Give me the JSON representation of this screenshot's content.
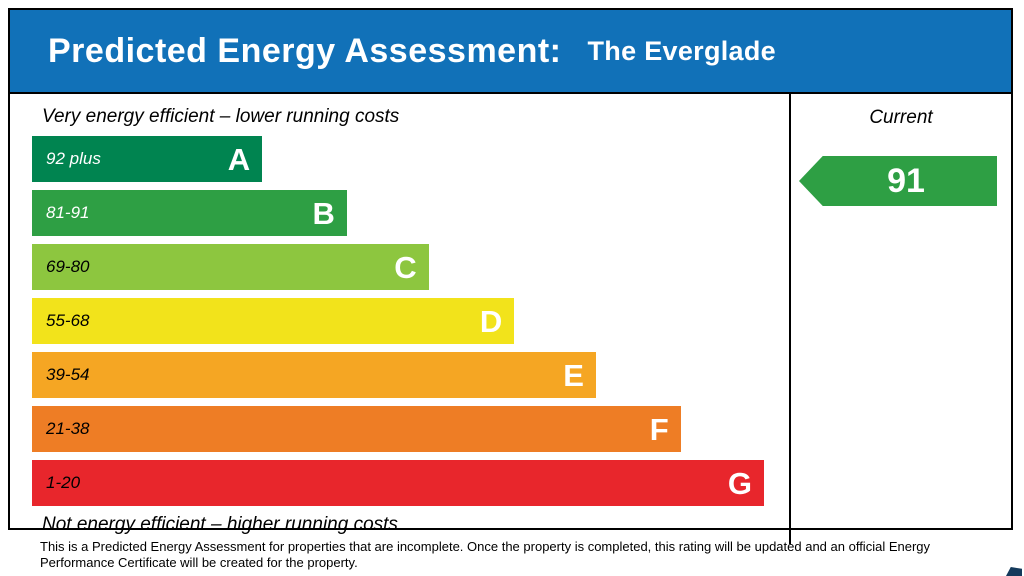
{
  "header": {
    "title": "Predicted Energy Assessment:",
    "property_name": "The Everglade",
    "bg_color": "#1171b8"
  },
  "chart_data": {
    "type": "bar",
    "title": "Predicted Energy Assessment",
    "top_label": "Very energy efficient – lower running costs",
    "bottom_label": "Not energy efficient – higher running costs",
    "current_label": "Current",
    "current_rating": 91,
    "current_band": "B",
    "arrow_color": "#2e9f44",
    "bands": [
      {
        "letter": "A",
        "range": "92 plus",
        "color": "#008450",
        "width_pct": 30.4,
        "text_color": "#ffffff"
      },
      {
        "letter": "B",
        "range": "81-91",
        "color": "#2e9f44",
        "width_pct": 41.6,
        "text_color": "#ffffff"
      },
      {
        "letter": "C",
        "range": "69-80",
        "color": "#8dc63f",
        "width_pct": 52.4,
        "text_color": "#000000"
      },
      {
        "letter": "D",
        "range": "55-68",
        "color": "#f2e31b",
        "width_pct": 63.7,
        "text_color": "#000000"
      },
      {
        "letter": "E",
        "range": "39-54",
        "color": "#f5a623",
        "width_pct": 74.5,
        "text_color": "#000000"
      },
      {
        "letter": "F",
        "range": "21-38",
        "color": "#ee7d25",
        "width_pct": 85.7,
        "text_color": "#000000"
      },
      {
        "letter": "G",
        "range": "1-20",
        "color": "#e8262c",
        "width_pct": 96.7,
        "text_color": "#000000"
      }
    ]
  },
  "footer": {
    "text": "This is a Predicted Energy Assessment for properties that are incomplete. Once the property is completed, this rating will be updated and an official Energy Performance Certificate will be created for the property."
  }
}
